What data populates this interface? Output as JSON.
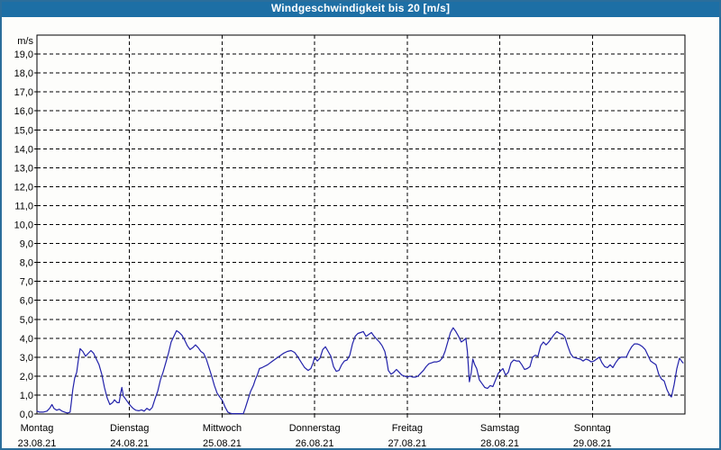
{
  "window": {
    "title": "Windgeschwindigkeit bis 20 [m/s]"
  },
  "colors": {
    "titlebar": "#1D6FA5",
    "window_border": "#2B6E9B",
    "axis": "#000000",
    "line": "#2222AA",
    "background": "#FDFDFB"
  },
  "chart_data": {
    "type": "line",
    "title": "Windgeschwindigkeit bis 20 [m/s]",
    "unit_label": "m/s",
    "ylabel_ticks": [
      "0,0",
      "1,0",
      "2,0",
      "3,0",
      "4,0",
      "5,0",
      "6,0",
      "7,0",
      "8,0",
      "9,0",
      "10,0",
      "11,0",
      "12,0",
      "13,0",
      "14,0",
      "15,0",
      "16,0",
      "17,0",
      "18,0",
      "19,0"
    ],
    "ylim": [
      0,
      20
    ],
    "xlim_hours": [
      0,
      168
    ],
    "grid": "dashed",
    "legend": "none",
    "line_color": "#2222AA",
    "days": [
      {
        "name": "Montag",
        "date": "23.08.21"
      },
      {
        "name": "Dienstag",
        "date": "24.08.21"
      },
      {
        "name": "Mittwoch",
        "date": "25.08.21"
      },
      {
        "name": "Donnerstag",
        "date": "26.08.21"
      },
      {
        "name": "Freitag",
        "date": "27.08.21"
      },
      {
        "name": "Samstag",
        "date": "28.08.21"
      },
      {
        "name": "Sonntag",
        "date": "29.08.21"
      }
    ],
    "series": [
      {
        "points_hours_mps": [
          [
            0,
            0.15
          ],
          [
            0.7,
            0.1
          ],
          [
            1.6,
            0.1
          ],
          [
            2.6,
            0.15
          ],
          [
            3.3,
            0.3
          ],
          [
            3.9,
            0.5
          ],
          [
            4.4,
            0.3
          ],
          [
            5.1,
            0.2
          ],
          [
            5.8,
            0.25
          ],
          [
            6.5,
            0.15
          ],
          [
            7.2,
            0.1
          ],
          [
            7.9,
            0.05
          ],
          [
            8.6,
            0.1
          ],
          [
            8.9,
            0.6
          ],
          [
            9.3,
            1.3
          ],
          [
            9.8,
            1.9
          ],
          [
            10.3,
            2.2
          ],
          [
            10.7,
            2.8
          ],
          [
            11.2,
            3.45
          ],
          [
            11.9,
            3.3
          ],
          [
            12.6,
            3.05
          ],
          [
            13.3,
            3.2
          ],
          [
            14,
            3.35
          ],
          [
            14.7,
            3.2
          ],
          [
            15.4,
            2.9
          ],
          [
            16.1,
            2.6
          ],
          [
            16.8,
            2.1
          ],
          [
            17.5,
            1.4
          ],
          [
            18.2,
            0.85
          ],
          [
            18.9,
            0.5
          ],
          [
            19.6,
            0.6
          ],
          [
            20.1,
            0.75
          ],
          [
            20.8,
            0.6
          ],
          [
            21.3,
            0.6
          ],
          [
            21.7,
            1.1
          ],
          [
            22,
            1.4
          ],
          [
            22.4,
            0.95
          ],
          [
            23.1,
            0.75
          ],
          [
            23.8,
            0.55
          ],
          [
            24.2,
            0.45
          ],
          [
            24.9,
            0.3
          ],
          [
            25.6,
            0.2
          ],
          [
            26.4,
            0.17
          ],
          [
            27.1,
            0.22
          ],
          [
            27.8,
            0.15
          ],
          [
            28.5,
            0.3
          ],
          [
            29.2,
            0.2
          ],
          [
            29.9,
            0.35
          ],
          [
            30.6,
            0.8
          ],
          [
            31.3,
            1.2
          ],
          [
            32,
            1.8
          ],
          [
            32.7,
            2.2
          ],
          [
            33.4,
            2.7
          ],
          [
            34.1,
            3.2
          ],
          [
            34.8,
            3.8
          ],
          [
            35.5,
            4.1
          ],
          [
            36.2,
            4.4
          ],
          [
            36.9,
            4.3
          ],
          [
            37.6,
            4.15
          ],
          [
            38.3,
            3.9
          ],
          [
            39,
            3.6
          ],
          [
            39.7,
            3.4
          ],
          [
            40.4,
            3.5
          ],
          [
            41.1,
            3.65
          ],
          [
            41.8,
            3.5
          ],
          [
            42.5,
            3.3
          ],
          [
            43.2,
            3.2
          ],
          [
            43.9,
            2.9
          ],
          [
            44.6,
            2.45
          ],
          [
            45.3,
            2
          ],
          [
            46,
            1.5
          ],
          [
            46.7,
            1.1
          ],
          [
            47.4,
            0.9
          ],
          [
            48.1,
            0.7
          ],
          [
            48.8,
            0.35
          ],
          [
            49.5,
            0.1
          ],
          [
            50,
            0.05
          ],
          [
            50.5,
            0.02
          ],
          [
            53.5,
            0.02
          ],
          [
            54,
            0.3
          ],
          [
            54.7,
            0.75
          ],
          [
            55.4,
            1.2
          ],
          [
            56.1,
            1.5
          ],
          [
            56.6,
            1.8
          ],
          [
            57.2,
            2.1
          ],
          [
            57.7,
            2.4
          ],
          [
            58.4,
            2.45
          ],
          [
            59.8,
            2.6
          ],
          [
            61.1,
            2.8
          ],
          [
            62.5,
            3
          ],
          [
            63.9,
            3.2
          ],
          [
            64.9,
            3.3
          ],
          [
            65.9,
            3.35
          ],
          [
            66.8,
            3.25
          ],
          [
            67.7,
            3
          ],
          [
            68.6,
            2.7
          ],
          [
            69.4,
            2.45
          ],
          [
            70.3,
            2.3
          ],
          [
            71,
            2.4
          ],
          [
            71.6,
            2.7
          ],
          [
            72,
            3
          ],
          [
            72.3,
            2.9
          ],
          [
            72.7,
            2.8
          ],
          [
            73.4,
            2.95
          ],
          [
            74.1,
            3.4
          ],
          [
            74.8,
            3.55
          ],
          [
            75.5,
            3.3
          ],
          [
            76.2,
            3.05
          ],
          [
            76.9,
            2.5
          ],
          [
            77.6,
            2.25
          ],
          [
            78.3,
            2.3
          ],
          [
            79,
            2.6
          ],
          [
            79.7,
            2.8
          ],
          [
            80.4,
            2.85
          ],
          [
            81.1,
            3.1
          ],
          [
            81.8,
            3.7
          ],
          [
            82.5,
            4.1
          ],
          [
            83.2,
            4.25
          ],
          [
            83.9,
            4.3
          ],
          [
            84.6,
            4.35
          ],
          [
            85.3,
            4.1
          ],
          [
            86,
            4.2
          ],
          [
            86.7,
            4.3
          ],
          [
            87.4,
            4.1
          ],
          [
            88.1,
            3.95
          ],
          [
            88.8,
            3.8
          ],
          [
            89.5,
            3.6
          ],
          [
            90.2,
            3.3
          ],
          [
            90.7,
            2.8
          ],
          [
            91.1,
            2.3
          ],
          [
            91.8,
            2.1
          ],
          [
            92.5,
            2.2
          ],
          [
            93.2,
            2.35
          ],
          [
            93.9,
            2.2
          ],
          [
            94.6,
            2.05
          ],
          [
            95.3,
            2
          ],
          [
            96,
            1.95
          ],
          [
            96.7,
            2
          ],
          [
            97.4,
            1.95
          ],
          [
            98.1,
            1.95
          ],
          [
            98.8,
            2
          ],
          [
            99.5,
            2.15
          ],
          [
            100.2,
            2.3
          ],
          [
            100.9,
            2.5
          ],
          [
            101.6,
            2.65
          ],
          [
            102.3,
            2.7
          ],
          [
            103,
            2.75
          ],
          [
            103.7,
            2.75
          ],
          [
            104.4,
            2.8
          ],
          [
            105.1,
            2.95
          ],
          [
            105.8,
            3.3
          ],
          [
            106.5,
            3.8
          ],
          [
            107.2,
            4.3
          ],
          [
            107.9,
            4.55
          ],
          [
            108.6,
            4.35
          ],
          [
            109.3,
            4.1
          ],
          [
            110,
            3.8
          ],
          [
            110.7,
            3.9
          ],
          [
            111.2,
            4
          ],
          [
            111.6,
            3.3
          ],
          [
            112.1,
            1.7
          ],
          [
            112.6,
            2.2
          ],
          [
            113,
            2.9
          ],
          [
            113.5,
            2.6
          ],
          [
            114,
            2.4
          ],
          [
            114.7,
            1.8
          ],
          [
            115.4,
            1.6
          ],
          [
            116.1,
            1.4
          ],
          [
            116.8,
            1.35
          ],
          [
            117.5,
            1.5
          ],
          [
            118.2,
            1.45
          ],
          [
            118.9,
            1.8
          ],
          [
            119.6,
            2.15
          ],
          [
            120.3,
            2.3
          ],
          [
            120.8,
            2.4
          ],
          [
            121.5,
            2.05
          ],
          [
            122.2,
            2.2
          ],
          [
            122.9,
            2.7
          ],
          [
            123.6,
            2.85
          ],
          [
            124.3,
            2.8
          ],
          [
            125,
            2.8
          ],
          [
            125.7,
            2.6
          ],
          [
            126.4,
            2.35
          ],
          [
            127.1,
            2.4
          ],
          [
            127.8,
            2.5
          ],
          [
            128.5,
            3
          ],
          [
            129.2,
            3.1
          ],
          [
            129.9,
            3.05
          ],
          [
            130.6,
            3.6
          ],
          [
            131.3,
            3.8
          ],
          [
            132,
            3.65
          ],
          [
            132.7,
            3.8
          ],
          [
            133.4,
            4
          ],
          [
            134.1,
            4.2
          ],
          [
            134.8,
            4.35
          ],
          [
            135.5,
            4.25
          ],
          [
            136.2,
            4.2
          ],
          [
            136.9,
            4.05
          ],
          [
            137.6,
            3.6
          ],
          [
            138.3,
            3.2
          ],
          [
            139,
            3
          ],
          [
            139.9,
            2.95
          ],
          [
            140.9,
            2.9
          ],
          [
            141.6,
            2.8
          ],
          [
            142.3,
            2.9
          ],
          [
            143,
            2.85
          ],
          [
            143.7,
            2.75
          ],
          [
            144.4,
            2.8
          ],
          [
            145.1,
            2.9
          ],
          [
            145.8,
            3
          ],
          [
            146.5,
            2.7
          ],
          [
            147.2,
            2.5
          ],
          [
            147.9,
            2.45
          ],
          [
            148.6,
            2.6
          ],
          [
            149.3,
            2.45
          ],
          [
            150,
            2.7
          ],
          [
            150.7,
            2.9
          ],
          [
            151.4,
            3
          ],
          [
            152.1,
            3
          ],
          [
            152.8,
            3
          ],
          [
            153.5,
            3.3
          ],
          [
            154.2,
            3.55
          ],
          [
            154.9,
            3.7
          ],
          [
            155.6,
            3.7
          ],
          [
            156.3,
            3.65
          ],
          [
            157,
            3.55
          ],
          [
            157.7,
            3.4
          ],
          [
            158.4,
            3.1
          ],
          [
            159.1,
            2.8
          ],
          [
            159.8,
            2.7
          ],
          [
            160.5,
            2.6
          ],
          [
            161.2,
            2.1
          ],
          [
            161.9,
            1.85
          ],
          [
            162.6,
            1.75
          ],
          [
            163.3,
            1.3
          ],
          [
            164,
            1
          ],
          [
            164.5,
            0.9
          ],
          [
            165.2,
            1.55
          ],
          [
            165.9,
            2.4
          ],
          [
            166.6,
            2.95
          ],
          [
            167.1,
            2.8
          ],
          [
            167.5,
            2.7
          ]
        ]
      }
    ]
  }
}
